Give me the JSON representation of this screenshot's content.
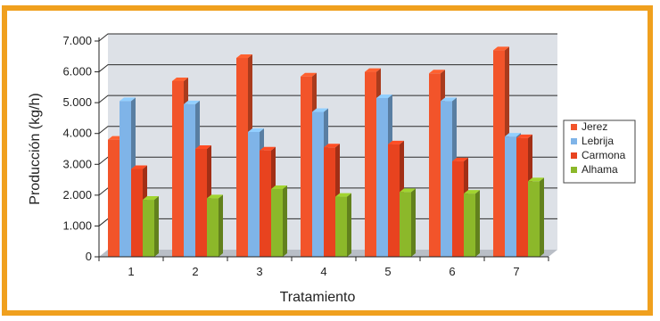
{
  "chart_data": {
    "type": "bar",
    "title": "",
    "xlabel": "Tratamiento",
    "ylabel": "Producción (kg/h)",
    "ylim": [
      0,
      7000
    ],
    "yticks": [
      0,
      1000,
      2000,
      3000,
      4000,
      5000,
      6000,
      7000
    ],
    "ytick_labels": [
      "0",
      "1.000",
      "2.000",
      "3.000",
      "4.000",
      "5.000",
      "6.000",
      "7.000"
    ],
    "categories": [
      "1",
      "2",
      "3",
      "4",
      "5",
      "6",
      "7"
    ],
    "grid": true,
    "legend_position": "right",
    "series": [
      {
        "name": "Jerez",
        "color": "#f2542a",
        "values": [
          3800,
          5700,
          6450,
          5850,
          6000,
          5950,
          6700
        ]
      },
      {
        "name": "Lebrija",
        "color": "#7fb4e8",
        "values": [
          5050,
          4950,
          4050,
          4700,
          5150,
          5050,
          3900
        ]
      },
      {
        "name": "Carmona",
        "color": "#e8431f",
        "values": [
          2850,
          3500,
          3450,
          3550,
          3650,
          3100,
          3850
        ]
      },
      {
        "name": "Alhama",
        "color": "#8cb82a",
        "values": [
          1850,
          1900,
          2200,
          1950,
          2100,
          2050,
          2450
        ]
      }
    ]
  }
}
